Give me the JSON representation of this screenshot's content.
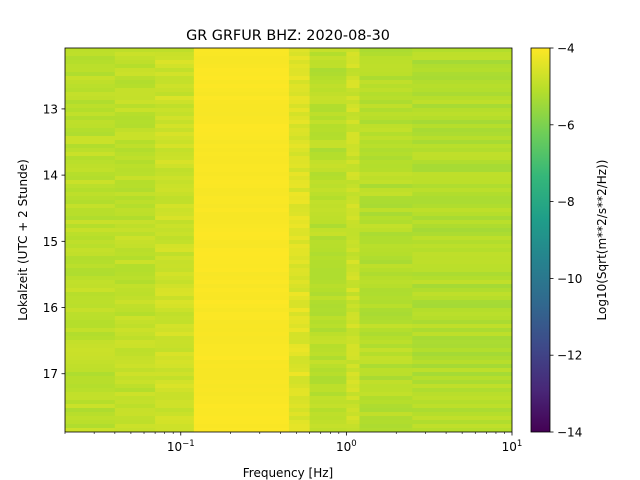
{
  "chart_data": {
    "type": "heatmap",
    "title": "GR GRFUR  BHZ: 2020-08-30",
    "xlabel": "Frequency [Hz]",
    "ylabel": "Lokalzeit (UTC + 2 Stunde)",
    "colorbar_label": "Log10(Sqrt(m**2/s**2/Hz))",
    "x_scale": "log",
    "xlim": [
      0.02,
      10
    ],
    "ylim": [
      12.08,
      17.88
    ],
    "y_inverted": true,
    "x_ticks": [
      {
        "value": 0.1,
        "base": "10",
        "exp": "−1"
      },
      {
        "value": 1,
        "base": "10",
        "exp": "0"
      },
      {
        "value": 10,
        "base": "10",
        "exp": "1"
      }
    ],
    "y_ticks": [
      {
        "value": 13,
        "label": "13"
      },
      {
        "value": 14,
        "label": "14"
      },
      {
        "value": 15,
        "label": "15"
      },
      {
        "value": 16,
        "label": "16"
      },
      {
        "value": 17,
        "label": "17"
      }
    ],
    "colorbar_range": [
      -14,
      -4
    ],
    "colorbar_ticks": [
      {
        "value": -4,
        "label": "−4"
      },
      {
        "value": -6,
        "label": "−6"
      },
      {
        "value": -8,
        "label": "−8"
      },
      {
        "value": -10,
        "label": "−10"
      },
      {
        "value": -12,
        "label": "−12"
      },
      {
        "value": -14,
        "label": "−14"
      }
    ],
    "colormap": "viridis",
    "colormap_stops": [
      "#440154",
      "#482878",
      "#3e4989",
      "#31688e",
      "#26828e",
      "#1f9e89",
      "#35b779",
      "#6ece58",
      "#b5de2b",
      "#fde725"
    ],
    "frequency_bands": [
      {
        "f_min": 0.02,
        "f_max": 0.04,
        "value": -5.0
      },
      {
        "f_min": 0.04,
        "f_max": 0.07,
        "value": -4.95
      },
      {
        "f_min": 0.07,
        "f_max": 0.12,
        "value": -4.75
      },
      {
        "f_min": 0.12,
        "f_max": 0.45,
        "value": -4.05
      },
      {
        "f_min": 0.45,
        "f_max": 0.6,
        "value": -4.45
      },
      {
        "f_min": 0.6,
        "f_max": 1.0,
        "value": -5.05
      },
      {
        "f_min": 1.0,
        "f_max": 1.2,
        "value": -4.75
      },
      {
        "f_min": 1.2,
        "f_max": 2.5,
        "value": -5.1
      },
      {
        "f_min": 2.5,
        "f_max": 10,
        "value": -5.15
      }
    ]
  }
}
